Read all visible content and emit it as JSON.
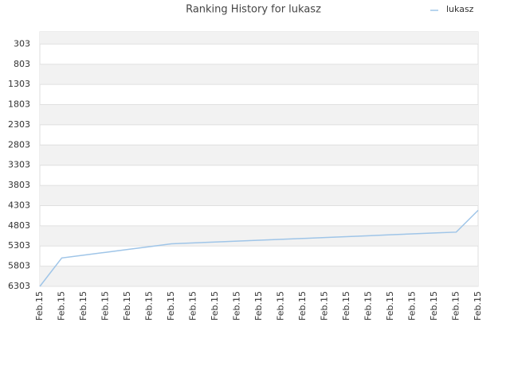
{
  "chart_data": {
    "type": "line",
    "title": "Ranking History for lukasz",
    "categories": [
      "Feb.15",
      "Feb.15",
      "Feb.15",
      "Feb.15",
      "Feb.15",
      "Feb.15",
      "Feb.15",
      "Feb.15",
      "Feb.15",
      "Feb.15",
      "Feb.15",
      "Feb.15",
      "Feb.15",
      "Feb.15",
      "Feb.15",
      "Feb.15",
      "Feb.15",
      "Feb.15",
      "Feb.15",
      "Feb.15",
      "Feb.15"
    ],
    "series": [
      {
        "name": "lukasz",
        "color": "#9fc5e8",
        "values": [
          6303,
          5600,
          5530,
          5460,
          5390,
          5320,
          5250,
          5228,
          5205,
          5183,
          5160,
          5138,
          5116,
          5093,
          5071,
          5049,
          5026,
          5004,
          4982,
          4960,
          4420
        ]
      }
    ],
    "ylim": [
      6303,
      0
    ],
    "yticks": [
      303,
      803,
      1303,
      1803,
      2303,
      2803,
      3303,
      3803,
      4303,
      4803,
      5303,
      5803,
      6303
    ],
    "inverted_y": true,
    "grid": true,
    "legend": "top-right"
  }
}
